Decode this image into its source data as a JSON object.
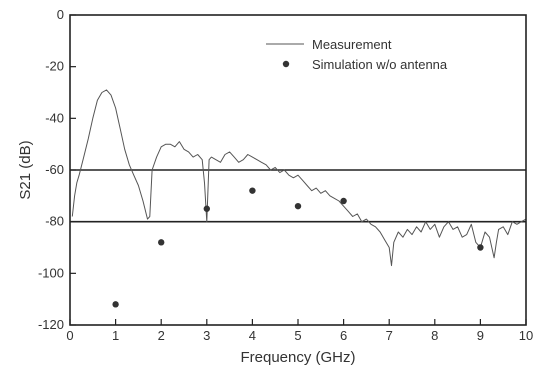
{
  "chart_data": {
    "type": "line",
    "title": "",
    "xlabel": "Frequency (GHz)",
    "ylabel": "S21 (dB)",
    "xlim": [
      0,
      10
    ],
    "ylim": [
      -120,
      0
    ],
    "xticks": [
      0,
      1,
      2,
      3,
      4,
      5,
      6,
      7,
      8,
      9,
      10
    ],
    "yticks": [
      0,
      -20,
      -40,
      -60,
      -80,
      -100,
      -120
    ],
    "grid": false,
    "legend_position": "top-right",
    "reference_lines_y": [
      -60,
      -80
    ],
    "series": [
      {
        "name": "Measurement",
        "style": "line",
        "color": "#555555",
        "x": [
          0.05,
          0.1,
          0.15,
          0.2,
          0.3,
          0.4,
          0.5,
          0.6,
          0.7,
          0.8,
          0.9,
          1.0,
          1.1,
          1.2,
          1.3,
          1.4,
          1.5,
          1.6,
          1.7,
          1.75,
          1.8,
          1.9,
          2.0,
          2.1,
          2.2,
          2.3,
          2.4,
          2.5,
          2.6,
          2.7,
          2.8,
          2.9,
          2.95,
          3.0,
          3.05,
          3.1,
          3.2,
          3.3,
          3.4,
          3.5,
          3.6,
          3.7,
          3.8,
          3.9,
          4.0,
          4.1,
          4.2,
          4.3,
          4.4,
          4.5,
          4.6,
          4.7,
          4.8,
          4.9,
          5.0,
          5.1,
          5.2,
          5.3,
          5.4,
          5.5,
          5.6,
          5.7,
          5.8,
          5.9,
          6.0,
          6.1,
          6.2,
          6.3,
          6.4,
          6.5,
          6.6,
          6.7,
          6.8,
          6.9,
          7.0,
          7.05,
          7.1,
          7.2,
          7.3,
          7.4,
          7.5,
          7.6,
          7.7,
          7.8,
          7.9,
          8.0,
          8.1,
          8.2,
          8.3,
          8.4,
          8.5,
          8.6,
          8.7,
          8.8,
          8.9,
          9.0,
          9.1,
          9.2,
          9.3,
          9.35,
          9.4,
          9.5,
          9.6,
          9.7,
          9.8,
          9.9,
          10.0
        ],
        "y": [
          -78,
          -70,
          -65,
          -62,
          -55,
          -48,
          -40,
          -33,
          -30,
          -29,
          -31,
          -36,
          -44,
          -52,
          -58,
          -62,
          -66,
          -72,
          -79,
          -78,
          -60,
          -55,
          -51,
          -50,
          -50,
          -51,
          -49,
          -52,
          -53,
          -55,
          -54,
          -56,
          -65,
          -80,
          -56,
          -55,
          -56,
          -57,
          -54,
          -53,
          -55,
          -57,
          -56,
          -54,
          -55,
          -56,
          -57,
          -58,
          -60,
          -59,
          -61,
          -60,
          -62,
          -63,
          -62,
          -64,
          -66,
          -68,
          -67,
          -69,
          -68,
          -70,
          -71,
          -72,
          -74,
          -76,
          -78,
          -77,
          -80,
          -79,
          -81,
          -82,
          -84,
          -87,
          -90,
          -97,
          -88,
          -84,
          -86,
          -83,
          -85,
          -82,
          -84,
          -80,
          -83,
          -81,
          -86,
          -82,
          -80,
          -83,
          -82,
          -86,
          -85,
          -81,
          -88,
          -90,
          -84,
          -86,
          -94,
          -88,
          -83,
          -82,
          -85,
          -80,
          -81,
          -80,
          -79
        ]
      },
      {
        "name": "Simulation w/o antenna",
        "style": "markers",
        "color": "#333333",
        "x": [
          1,
          2,
          3,
          4,
          5,
          6,
          9
        ],
        "y": [
          -112,
          -88,
          -75,
          -68,
          -74,
          -72,
          -90
        ]
      }
    ]
  }
}
